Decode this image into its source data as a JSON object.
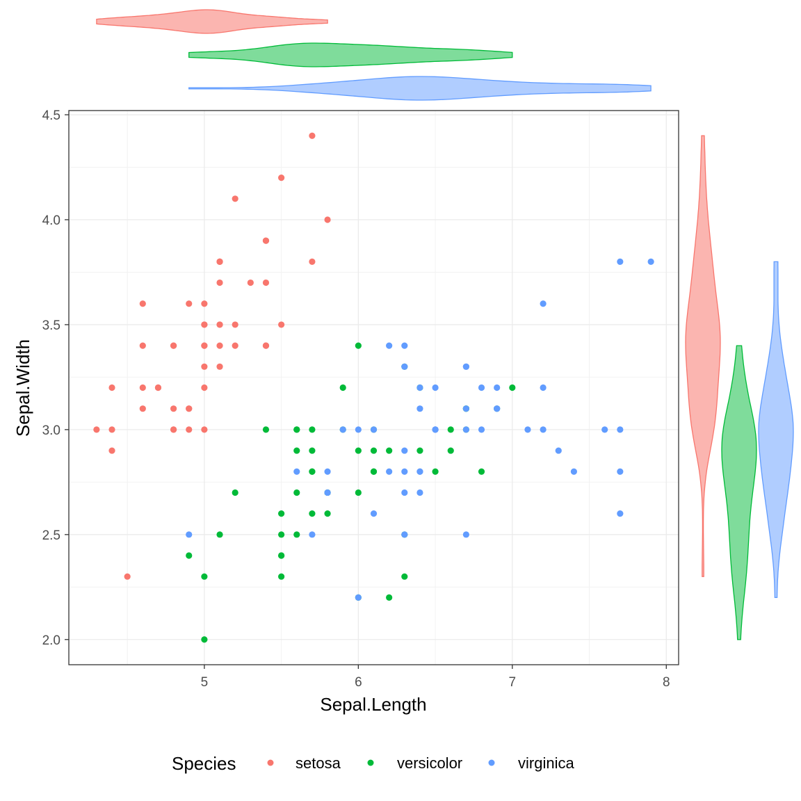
{
  "chart_data": {
    "type": "scatter",
    "xlabel": "Sepal.Length",
    "ylabel": "Sepal.Width",
    "xlim": [
      4.12,
      8.08
    ],
    "ylim": [
      1.88,
      4.52
    ],
    "x_ticks": [
      "5",
      "6",
      "7",
      "8"
    ],
    "x_tick_values": [
      5,
      6,
      7,
      8
    ],
    "y_ticks": [
      "2.0",
      "2.5",
      "3.0",
      "3.5",
      "4.0",
      "4.5"
    ],
    "y_tick_values": [
      2.0,
      2.5,
      3.0,
      3.5,
      4.0,
      4.5
    ],
    "grid": true,
    "legend": {
      "title": "Species",
      "position": "bottom"
    },
    "marginal": {
      "type": "violin",
      "top": "Sepal.Length by Species",
      "right": "Sepal.Width by Species"
    },
    "series": [
      {
        "name": "setosa",
        "color": "#F8766D",
        "fill": "#FBB5B0",
        "points": [
          [
            5.1,
            3.5
          ],
          [
            4.9,
            3.0
          ],
          [
            4.7,
            3.2
          ],
          [
            4.6,
            3.1
          ],
          [
            5.0,
            3.6
          ],
          [
            5.4,
            3.9
          ],
          [
            4.6,
            3.4
          ],
          [
            5.0,
            3.4
          ],
          [
            4.4,
            2.9
          ],
          [
            4.9,
            3.1
          ],
          [
            5.4,
            3.7
          ],
          [
            4.8,
            3.4
          ],
          [
            4.8,
            3.0
          ],
          [
            4.3,
            3.0
          ],
          [
            5.8,
            4.0
          ],
          [
            5.7,
            4.4
          ],
          [
            5.4,
            3.9
          ],
          [
            5.1,
            3.5
          ],
          [
            5.7,
            3.8
          ],
          [
            5.1,
            3.8
          ],
          [
            5.4,
            3.4
          ],
          [
            5.1,
            3.7
          ],
          [
            4.6,
            3.6
          ],
          [
            5.1,
            3.3
          ],
          [
            4.8,
            3.4
          ],
          [
            5.0,
            3.0
          ],
          [
            5.0,
            3.4
          ],
          [
            5.2,
            3.5
          ],
          [
            5.2,
            3.4
          ],
          [
            4.7,
            3.2
          ],
          [
            4.8,
            3.1
          ],
          [
            5.4,
            3.4
          ],
          [
            5.2,
            4.1
          ],
          [
            5.5,
            4.2
          ],
          [
            4.9,
            3.1
          ],
          [
            5.0,
            3.2
          ],
          [
            5.5,
            3.5
          ],
          [
            4.9,
            3.6
          ],
          [
            4.4,
            3.0
          ],
          [
            5.1,
            3.4
          ],
          [
            5.0,
            3.5
          ],
          [
            4.5,
            2.3
          ],
          [
            4.4,
            3.2
          ],
          [
            5.0,
            3.5
          ],
          [
            5.1,
            3.8
          ],
          [
            4.8,
            3.0
          ],
          [
            5.1,
            3.8
          ],
          [
            4.6,
            3.2
          ],
          [
            5.3,
            3.7
          ],
          [
            5.0,
            3.3
          ]
        ]
      },
      {
        "name": "versicolor",
        "color": "#00BA38",
        "fill": "#7FDC9B",
        "points": [
          [
            7.0,
            3.2
          ],
          [
            6.4,
            3.2
          ],
          [
            6.9,
            3.1
          ],
          [
            5.5,
            2.3
          ],
          [
            6.5,
            2.8
          ],
          [
            5.7,
            2.8
          ],
          [
            6.3,
            3.3
          ],
          [
            4.9,
            2.4
          ],
          [
            6.6,
            2.9
          ],
          [
            5.2,
            2.7
          ],
          [
            5.0,
            2.0
          ],
          [
            5.9,
            3.0
          ],
          [
            6.0,
            2.2
          ],
          [
            6.1,
            2.9
          ],
          [
            5.6,
            2.9
          ],
          [
            6.7,
            3.1
          ],
          [
            5.6,
            3.0
          ],
          [
            5.8,
            2.7
          ],
          [
            6.2,
            2.2
          ],
          [
            5.6,
            2.5
          ],
          [
            5.9,
            3.2
          ],
          [
            6.1,
            2.8
          ],
          [
            6.3,
            2.5
          ],
          [
            6.1,
            2.8
          ],
          [
            6.4,
            2.9
          ],
          [
            6.6,
            3.0
          ],
          [
            6.8,
            2.8
          ],
          [
            6.7,
            3.0
          ],
          [
            6.0,
            2.9
          ],
          [
            5.7,
            2.6
          ],
          [
            5.5,
            2.4
          ],
          [
            5.5,
            2.4
          ],
          [
            5.8,
            2.7
          ],
          [
            6.0,
            2.7
          ],
          [
            5.4,
            3.0
          ],
          [
            6.0,
            3.4
          ],
          [
            6.7,
            3.1
          ],
          [
            6.3,
            2.3
          ],
          [
            5.6,
            3.0
          ],
          [
            5.5,
            2.5
          ],
          [
            5.5,
            2.6
          ],
          [
            6.1,
            3.0
          ],
          [
            5.8,
            2.6
          ],
          [
            5.0,
            2.3
          ],
          [
            5.6,
            2.7
          ],
          [
            5.7,
            3.0
          ],
          [
            5.7,
            2.9
          ],
          [
            6.2,
            2.9
          ],
          [
            5.1,
            2.5
          ],
          [
            5.7,
            2.8
          ]
        ]
      },
      {
        "name": "virginica",
        "color": "#619CFF",
        "fill": "#B0CDFF",
        "points": [
          [
            6.3,
            3.3
          ],
          [
            5.8,
            2.7
          ],
          [
            7.1,
            3.0
          ],
          [
            6.3,
            2.9
          ],
          [
            6.5,
            3.0
          ],
          [
            7.6,
            3.0
          ],
          [
            4.9,
            2.5
          ],
          [
            7.3,
            2.9
          ],
          [
            6.7,
            2.5
          ],
          [
            7.2,
            3.6
          ],
          [
            6.5,
            3.2
          ],
          [
            6.4,
            2.7
          ],
          [
            6.8,
            3.0
          ],
          [
            5.7,
            2.5
          ],
          [
            5.8,
            2.8
          ],
          [
            6.4,
            3.2
          ],
          [
            6.5,
            3.0
          ],
          [
            7.7,
            3.8
          ],
          [
            7.7,
            2.6
          ],
          [
            6.0,
            2.2
          ],
          [
            6.9,
            3.2
          ],
          [
            5.6,
            2.8
          ],
          [
            7.7,
            2.8
          ],
          [
            6.3,
            2.7
          ],
          [
            6.7,
            3.3
          ],
          [
            7.2,
            3.2
          ],
          [
            6.2,
            2.8
          ],
          [
            6.1,
            3.0
          ],
          [
            6.4,
            2.8
          ],
          [
            7.2,
            3.0
          ],
          [
            7.4,
            2.8
          ],
          [
            7.9,
            3.8
          ],
          [
            6.4,
            2.8
          ],
          [
            6.3,
            2.8
          ],
          [
            6.1,
            2.6
          ],
          [
            7.7,
            3.0
          ],
          [
            6.3,
            3.4
          ],
          [
            6.4,
            3.1
          ],
          [
            6.0,
            3.0
          ],
          [
            6.9,
            3.1
          ],
          [
            6.7,
            3.1
          ],
          [
            6.9,
            3.1
          ],
          [
            5.8,
            2.7
          ],
          [
            6.8,
            3.2
          ],
          [
            6.7,
            3.3
          ],
          [
            6.7,
            3.0
          ],
          [
            6.3,
            2.5
          ],
          [
            6.5,
            3.0
          ],
          [
            6.2,
            3.4
          ],
          [
            5.9,
            3.0
          ]
        ]
      }
    ]
  }
}
